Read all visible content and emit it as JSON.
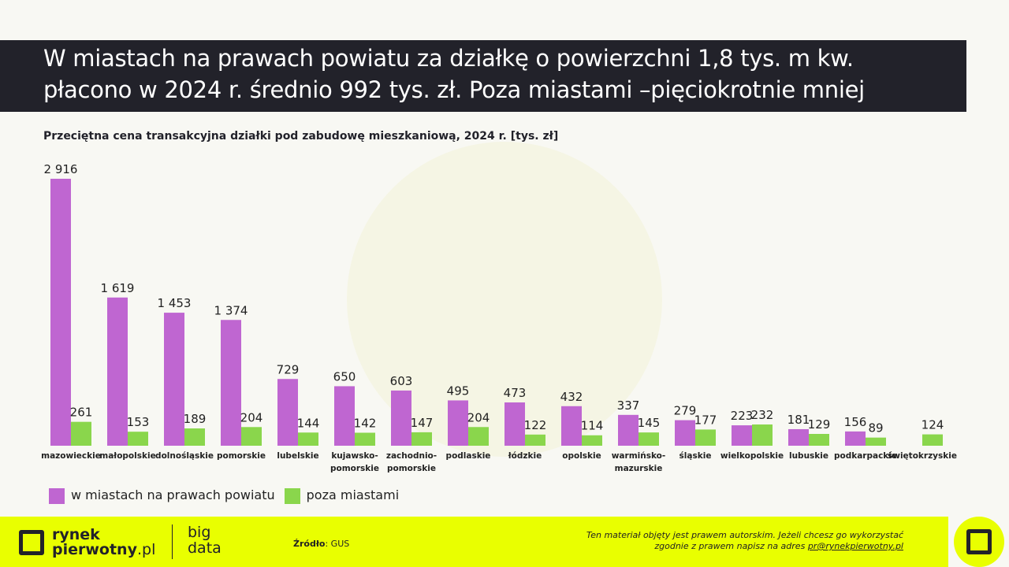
{
  "title": {
    "line1": "W miastach na prawach powiatu za działkę o powierzchni 1,8 tys. m kw.",
    "line2": "płacono w 2024 r. średnio 992 tys. zł. Poza miastami –pięciokrotnie mniej"
  },
  "colors": {
    "city": "#bf66d1",
    "outside": "#8ad64c",
    "accent": "#e9ff00",
    "dark": "#22222a"
  },
  "chart_data": {
    "type": "bar",
    "title": "Przeciętna cena transakcyjna działki pod zabudowę mieszkaniową, 2024 r. [tys. zł]",
    "categories": [
      "mazowieckie",
      "małopolskie",
      "dolnośląskie",
      "pomorskie",
      "lubelskie",
      "kujawsko-pomorskie",
      "zachodnio-pomorskie",
      "podlaskie",
      "łódzkie",
      "opolskie",
      "warmińsko-mazurskie",
      "śląskie",
      "wielkopolskie",
      "lubuskie",
      "podkarpackie",
      "świętokrzyskie"
    ],
    "category_lines": [
      [
        "mazowieckie"
      ],
      [
        "małopolskie"
      ],
      [
        "dolnośląskie"
      ],
      [
        "pomorskie"
      ],
      [
        "lubelskie"
      ],
      [
        "kujawsko-",
        "pomorskie"
      ],
      [
        "zachodnio-",
        "pomorskie"
      ],
      [
        "podlaskie"
      ],
      [
        "łódzkie"
      ],
      [
        "opolskie"
      ],
      [
        "warmińsko-",
        "mazurskie"
      ],
      [
        "śląskie"
      ],
      [
        "wielkopolskie"
      ],
      [
        "lubuskie"
      ],
      [
        "podkarpackie"
      ],
      [
        "świętokrzyskie"
      ]
    ],
    "series": [
      {
        "name": "w miastach na prawach powiatu",
        "values": [
          2916,
          1619,
          1453,
          1374,
          729,
          650,
          603,
          495,
          473,
          432,
          337,
          279,
          223,
          181,
          156,
          null
        ],
        "labels": [
          "2 916",
          "1 619",
          "1 453",
          "1 374",
          "729",
          "650",
          "603",
          "495",
          "473",
          "432",
          "337",
          "279",
          "223",
          "181",
          "156",
          ""
        ]
      },
      {
        "name": "poza miastami",
        "values": [
          261,
          153,
          189,
          204,
          144,
          142,
          147,
          204,
          122,
          114,
          145,
          177,
          232,
          129,
          89,
          124
        ],
        "labels": [
          "261",
          "153",
          "189",
          "204",
          "144",
          "142",
          "147",
          "204",
          "122",
          "114",
          "145",
          "177",
          "232",
          "129",
          "89",
          "124"
        ]
      }
    ],
    "ylim": [
      0,
      2916
    ],
    "grid": false,
    "legend": "bottom-left"
  },
  "footer": {
    "brand_line1": "rynek",
    "brand_line2": "pierwotny",
    "brand_suffix": ".pl",
    "bigdata1": "big",
    "bigdata2": "data",
    "source_label": "Źródło",
    "source_value": ": GUS",
    "copy_line1": "Ten materiał objęty jest prawem autorskim. Jeżeli chcesz go wykorzystać",
    "copy_line2": "zgodnie z prawem napisz na adres ",
    "email": "pr@rynekpierwotny.pl"
  }
}
